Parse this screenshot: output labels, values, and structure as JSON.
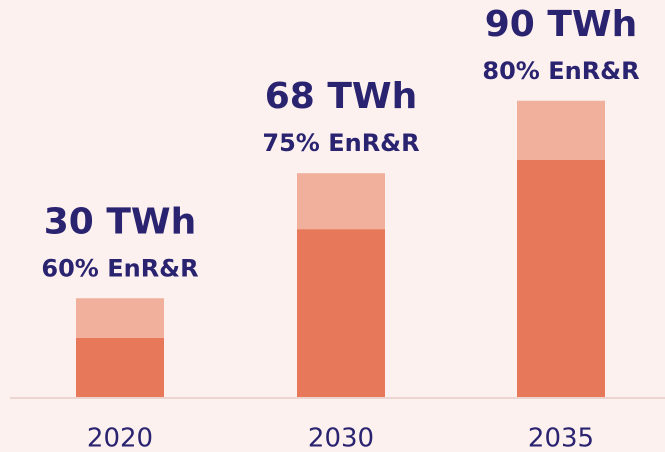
{
  "chart_data": {
    "type": "stacked-bar",
    "categories": [
      "2020",
      "2030",
      "2035"
    ],
    "series": [
      {
        "color": "#e8785a",
        "values": [
          18,
          51,
          72
        ]
      },
      {
        "color": "#f0b09c",
        "values": [
          12,
          17,
          18
        ]
      }
    ],
    "totals": {
      "values": [
        30,
        68,
        90
      ],
      "value_labels": [
        "30 TWh",
        "68 TWh",
        "90 TWh"
      ]
    },
    "shares": {
      "values": [
        60,
        75,
        80
      ],
      "value_labels": [
        "60% EnR&R",
        "75% EnR&R",
        "80% EnR&R"
      ]
    },
    "ylim": [
      0,
      120
    ]
  }
}
